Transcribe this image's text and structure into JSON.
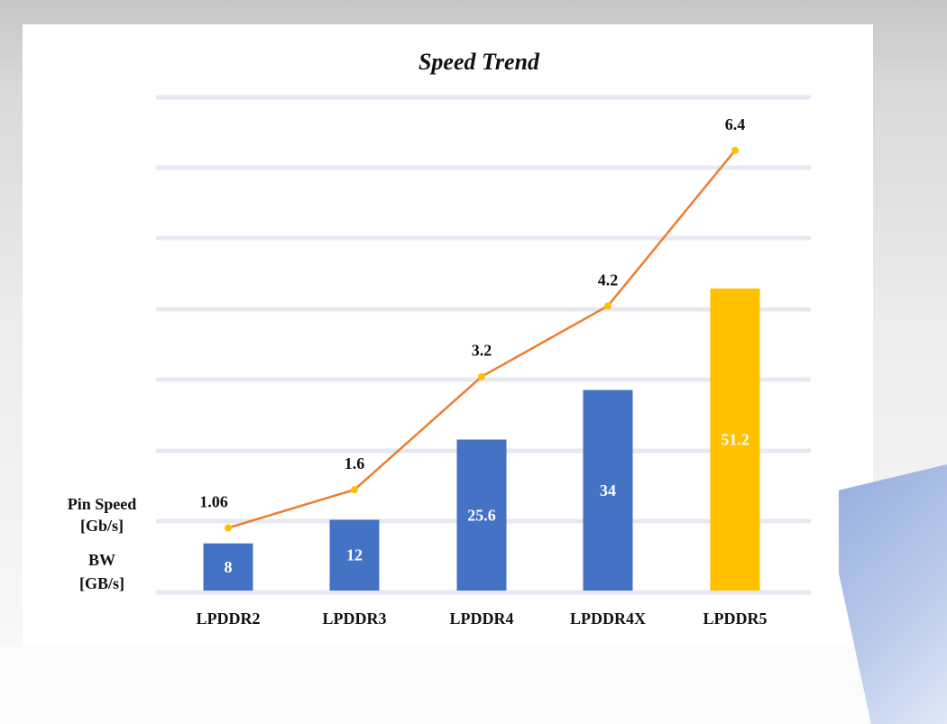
{
  "chart_data": {
    "type": "bar",
    "title": "Speed Trend",
    "categories": [
      "LPDDR2",
      "LPDDR3",
      "LPDDR4",
      "LPDDR4X",
      "LPDDR5"
    ],
    "series": [
      {
        "name": "BW",
        "unit": "[GB/s]",
        "kind": "bar",
        "values": [
          8,
          12,
          25.6,
          34,
          51.2
        ],
        "colors": [
          "#4472c4",
          "#4472c4",
          "#4472c4",
          "#4472c4",
          "#ffc000"
        ]
      },
      {
        "name": "Pin Speed",
        "unit": "[Gb/s]",
        "kind": "line",
        "values": [
          1.06,
          1.6,
          3.2,
          4.2,
          6.4
        ],
        "color": "#ed7d31",
        "marker_color": "#ffc000"
      }
    ],
    "grid": true,
    "legend": "left"
  }
}
